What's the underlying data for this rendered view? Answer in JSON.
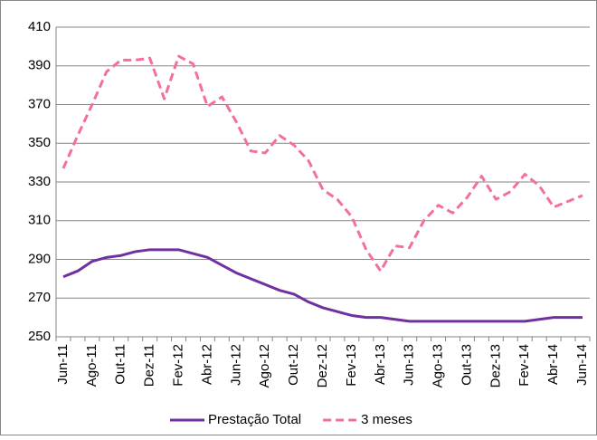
{
  "chart_data": {
    "type": "line",
    "categories": [
      "Jun-11",
      null,
      "Ago-11",
      null,
      "Out-11",
      null,
      "Dez-11",
      null,
      "Fev-12",
      null,
      "Abr-12",
      null,
      "Jun-12",
      null,
      "Ago-12",
      null,
      "Out-12",
      null,
      "Dez-12",
      null,
      "Fev-13",
      null,
      "Abr-13",
      null,
      "Jun-13",
      null,
      "Ago-13",
      null,
      "Out-13",
      null,
      "Dez-13",
      null,
      "Fev-14",
      null,
      "Abr-14",
      null,
      "Jun-14"
    ],
    "series": [
      {
        "name": "Prestação Total",
        "color": "#7030a0",
        "style": "solid",
        "values": [
          281,
          284,
          289,
          291,
          292,
          294,
          295,
          295,
          295,
          293,
          291,
          287,
          283,
          280,
          277,
          274,
          272,
          268,
          265,
          263,
          261,
          260,
          260,
          259,
          258,
          258,
          258,
          258,
          258,
          258,
          258,
          258,
          258,
          259,
          260,
          260,
          260
        ]
      },
      {
        "name": "3 meses",
        "color": "#f4709a",
        "style": "dashed",
        "values": [
          337,
          354,
          370,
          387,
          393,
          393,
          394,
          373,
          395,
          391,
          369,
          374,
          361,
          346,
          345,
          354,
          349,
          341,
          326,
          321,
          312,
          295,
          284,
          297,
          296,
          310,
          318,
          314,
          322,
          333,
          321,
          325,
          334,
          328,
          317,
          320,
          323
        ]
      }
    ],
    "ylim": [
      250,
      410
    ],
    "yticks": [
      250,
      270,
      290,
      310,
      330,
      350,
      370,
      390,
      410
    ],
    "grid": true,
    "legend": "bottom"
  }
}
